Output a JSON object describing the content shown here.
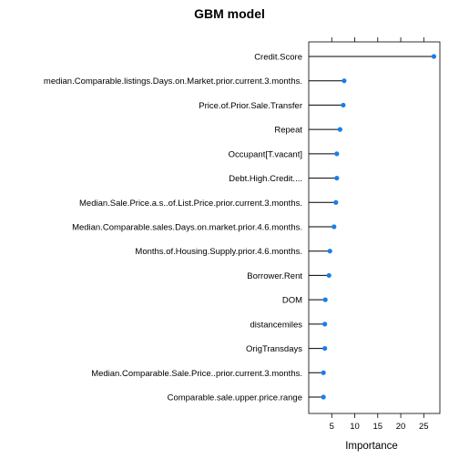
{
  "chart_data": {
    "type": "dot",
    "title": "GBM model",
    "xlabel": "Importance",
    "ylabel": "",
    "xlim": [
      0,
      28.5
    ],
    "xticks": [
      5,
      10,
      15,
      20,
      25
    ],
    "categories": [
      "Credit.Score",
      "median.Comparable.listings.Days.on.Market.prior.current.3.months.",
      "Price.of.Prior.Sale.Transfer",
      "Repeat",
      "Occupant[T.vacant]",
      "Debt.High.Credit....",
      "Median.Sale.Price.a.s..of.List.Price.prior.current.3.months.",
      "Median.Comparable.sales.Days.on.market.prior.4.6.months.",
      "Months.of.Housing.Supply.prior.4.6.months.",
      "Borrower.Rent",
      "DOM",
      "distancemiles",
      "OrigTransdays",
      "Median.Comparable.Sale.Price..prior.current.3.months.",
      "Comparable.sale.upper.price.range"
    ],
    "values": [
      27.2,
      7.7,
      7.5,
      6.8,
      6.1,
      6.1,
      5.9,
      5.5,
      4.6,
      4.4,
      3.6,
      3.5,
      3.5,
      3.2,
      3.2
    ],
    "point_color": "#1a7ee8",
    "line_color": "#000000",
    "grid": false
  }
}
